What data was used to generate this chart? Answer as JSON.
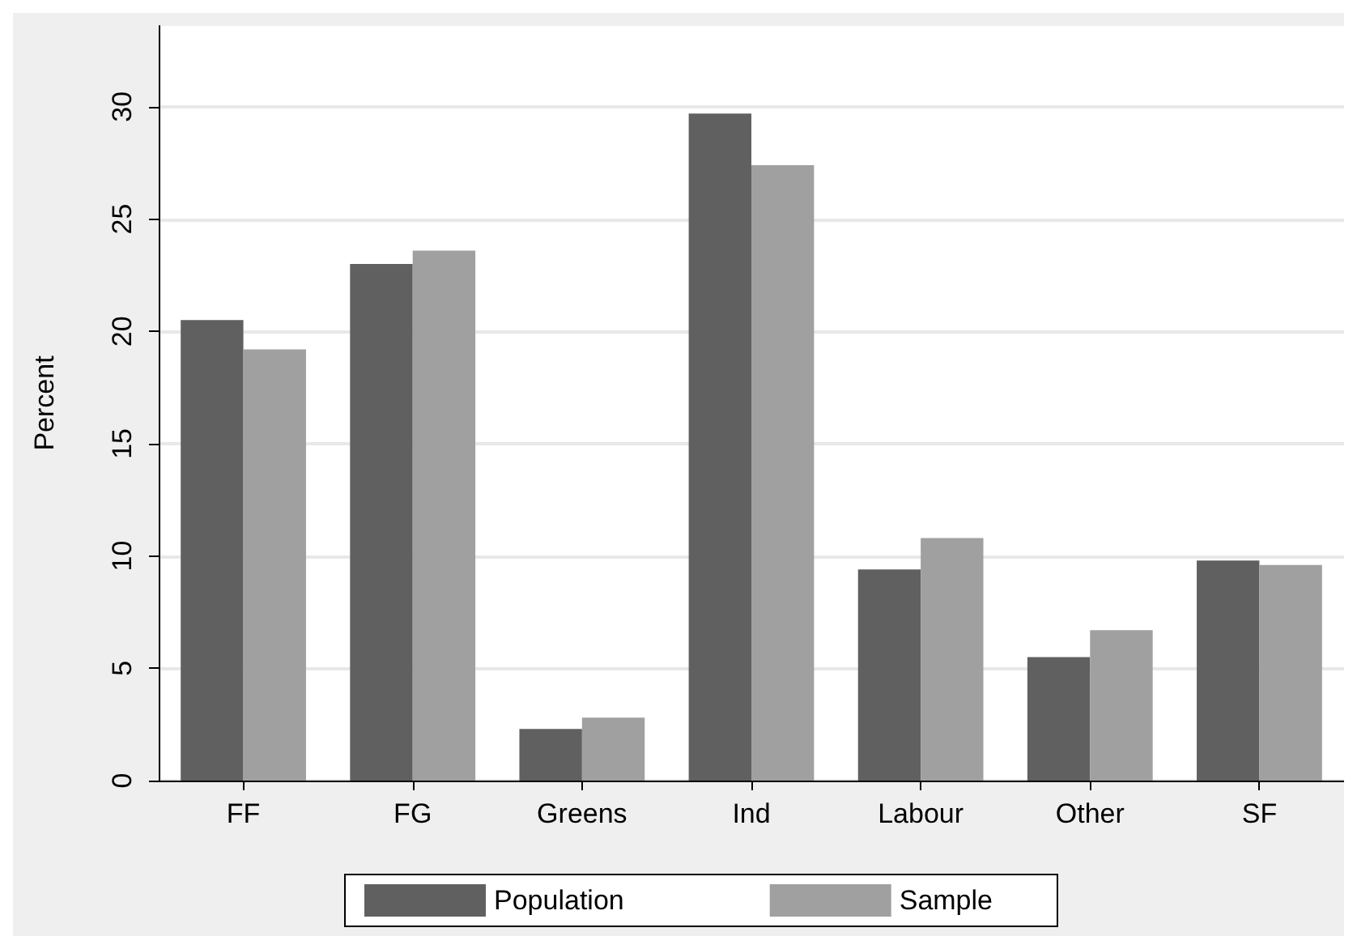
{
  "chart_data": {
    "type": "bar",
    "ylabel": "Percent",
    "categories": [
      "FF",
      "FG",
      "Greens",
      "Ind",
      "Labour",
      "Other",
      "SF"
    ],
    "series": [
      {
        "name": "Population",
        "color": "#606060",
        "values": [
          20.5,
          23.0,
          2.3,
          29.7,
          9.4,
          5.5,
          9.8
        ]
      },
      {
        "name": "Sample",
        "color": "#a0a0a0",
        "values": [
          19.2,
          23.6,
          2.8,
          27.4,
          10.8,
          6.7,
          9.6
        ]
      }
    ],
    "ylim": [
      0,
      33.6
    ],
    "yticks": [
      0,
      5,
      10,
      15,
      20,
      25,
      30
    ],
    "grid": "y",
    "legend": "bottom"
  }
}
